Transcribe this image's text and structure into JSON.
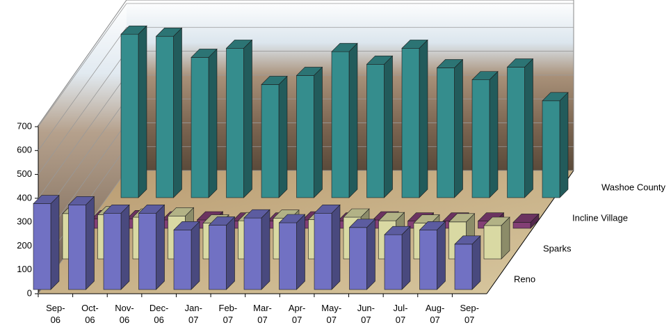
{
  "chart_data": {
    "type": "bar3d",
    "categories": [
      "Sep-06",
      "Oct-06",
      "Nov-06",
      "Dec-06",
      "Jan-07",
      "Feb-07",
      "Mar-07",
      "Apr-07",
      "May-07",
      "Jun-07",
      "Jul-07",
      "Aug-07",
      "Sep-07"
    ],
    "series": [
      {
        "name": "Reno",
        "color": "#8585e6",
        "values": [
          360,
          355,
          320,
          320,
          250,
          270,
          300,
          280,
          320,
          260,
          230,
          250,
          190
        ]
      },
      {
        "name": "Sparks",
        "color": "#ffffc0",
        "values": [
          190,
          185,
          175,
          180,
          150,
          160,
          170,
          165,
          175,
          160,
          150,
          155,
          140
        ]
      },
      {
        "name": "Incline Village",
        "color": "#9a4a8a",
        "values": [
          40,
          40,
          35,
          35,
          30,
          30,
          35,
          30,
          35,
          30,
          30,
          30,
          25
        ]
      },
      {
        "name": "Washoe County",
        "color": "#3fa6a6",
        "values": [
          685,
          676,
          588,
          626,
          474,
          512,
          612,
          559,
          626,
          544,
          494,
          547,
          406
        ]
      }
    ],
    "ylim": [
      0,
      700
    ],
    "yticks": [
      0,
      100,
      200,
      300,
      400,
      500,
      600,
      700
    ],
    "grid": true
  }
}
